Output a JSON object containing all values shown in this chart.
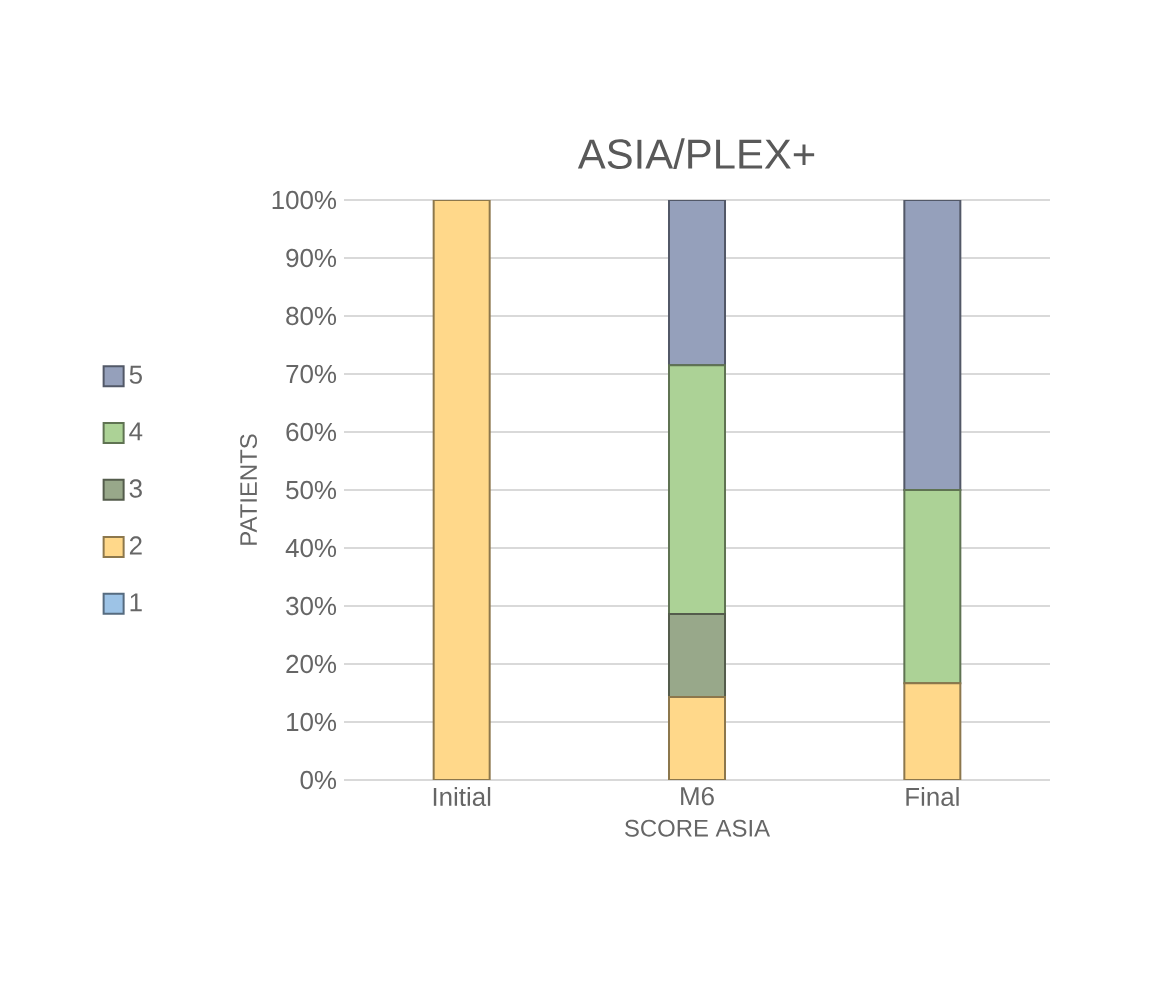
{
  "chart_data": {
    "type": "bar",
    "title": "ASIA/PLEX+",
    "xlabel": "SCORE ASIA",
    "ylabel": "PATIENTS",
    "stacked": true,
    "categories": [
      "Initial",
      "M6",
      "Final"
    ],
    "series": [
      {
        "name": "1",
        "color": "#9dc3e6",
        "values": [
          0,
          0,
          0
        ]
      },
      {
        "name": "2",
        "color": "#ffd88a",
        "values": [
          100,
          14.3,
          16.7
        ]
      },
      {
        "name": "3",
        "color": "#98a88a",
        "values": [
          0,
          14.3,
          0
        ]
      },
      {
        "name": "4",
        "color": "#acd296",
        "values": [
          0,
          42.9,
          33.3
        ]
      },
      {
        "name": "5",
        "color": "#95a0bb",
        "values": [
          0,
          28.5,
          50
        ]
      }
    ],
    "ylim": [
      0,
      100
    ],
    "yticks": [
      {
        "value": 0,
        "label": "0%"
      },
      {
        "value": 10,
        "label": "10%"
      },
      {
        "value": 20,
        "label": "20%"
      },
      {
        "value": 30,
        "label": "30%"
      },
      {
        "value": 40,
        "label": "40%"
      },
      {
        "value": 50,
        "label": "50%"
      },
      {
        "value": 60,
        "label": "60%"
      },
      {
        "value": 70,
        "label": "70%"
      },
      {
        "value": 80,
        "label": "80%"
      },
      {
        "value": 90,
        "label": "90%"
      },
      {
        "value": 100,
        "label": "100%"
      }
    ],
    "grid": "y",
    "legend": "left"
  }
}
